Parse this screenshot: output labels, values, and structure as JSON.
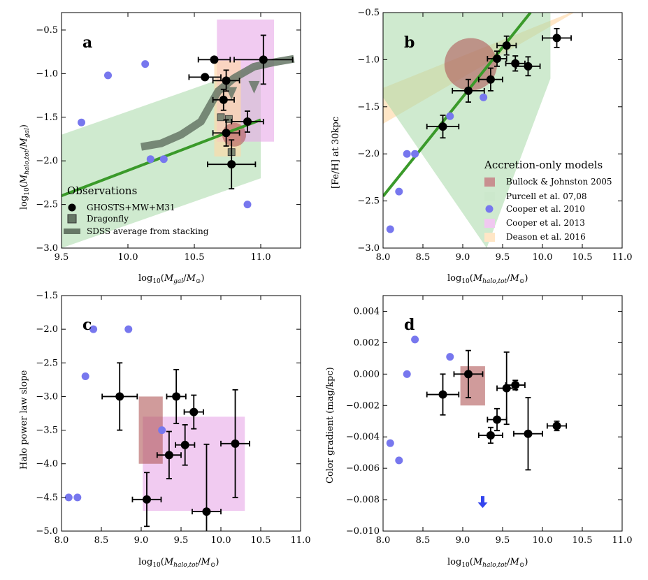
{
  "colors": {
    "blue": "#7777ee",
    "green_line": "#3a9a2a",
    "green_fill": "#a8d8a8",
    "pink": "#e8a8e8",
    "peach": "#ffd9a8",
    "brown": "#b05858",
    "sdss": "#667766",
    "black": "#000000"
  },
  "chart_data": [
    {
      "id": "a",
      "type": "scatter",
      "panel_label": "a",
      "xlabel": "log10(Mgal/M⊙)",
      "ylabel": "log10(Mhalo,tot/Mgal)",
      "xlim": [
        9.5,
        11.3
      ],
      "ylim": [
        -3.0,
        -0.3
      ],
      "xticks": [
        9.5,
        10.0,
        10.5,
        11.0
      ],
      "xtick_labels": [
        "9.5",
        "10.0",
        "10.5",
        "11.0"
      ],
      "yticks": [
        -3.0,
        -2.5,
        -2.0,
        -1.5,
        -1.0,
        -0.5
      ],
      "ytick_labels": [
        "−3.0",
        "−2.5",
        "−2.0",
        "−1.5",
        "−1.0",
        "−0.5"
      ],
      "ghosts": [
        {
          "x": 10.58,
          "y": -1.04,
          "xerr": 0.12,
          "yerr": 0.0
        },
        {
          "x": 10.65,
          "y": -0.84,
          "xerr": 0.12,
          "yerr": 0.0
        },
        {
          "x": 10.74,
          "y": -1.08,
          "xerr": 0.1,
          "yerr": 0.12
        },
        {
          "x": 10.72,
          "y": -1.3,
          "xerr": 0.08,
          "yerr": 0.12
        },
        {
          "x": 10.74,
          "y": -1.68,
          "xerr": 0.1,
          "yerr": 0.15
        },
        {
          "x": 10.78,
          "y": -2.04,
          "xerr": 0.18,
          "yerr": 0.28
        },
        {
          "x": 10.9,
          "y": -1.55,
          "xerr": 0.12,
          "yerr": 0.12
        },
        {
          "x": 11.02,
          "y": -0.84,
          "xerr": 0.22,
          "yerr": 0.28
        }
      ],
      "cooper2010": [
        {
          "x": 9.65,
          "y": -1.56
        },
        {
          "x": 9.85,
          "y": -1.02
        },
        {
          "x": 10.13,
          "y": -0.89
        },
        {
          "x": 10.17,
          "y": -1.98
        },
        {
          "x": 10.27,
          "y": -1.98
        },
        {
          "x": 10.9,
          "y": -2.5
        }
      ],
      "sdss_x": [
        10.1,
        10.25,
        10.4,
        10.55,
        10.68,
        10.8,
        10.95,
        11.1,
        11.25
      ],
      "sdss_y": [
        -1.84,
        -1.8,
        -1.7,
        -1.55,
        -1.2,
        -1.05,
        -0.92,
        -0.87,
        -0.83
      ],
      "purcell_line": {
        "x": [
          9.5,
          11.0
        ],
        "y": [
          -2.4,
          -1.53
        ]
      },
      "purcell_band": {
        "x": [
          9.5,
          11.0
        ],
        "y_low": [
          -3.0,
          -2.2
        ],
        "y_high": [
          -1.7,
          -0.9
        ]
      },
      "cooper2013_box": {
        "x": [
          10.67,
          11.1
        ],
        "y": [
          -1.78,
          -0.38
        ]
      },
      "deason_box": {
        "x": [
          10.65,
          10.85
        ],
        "y": [
          -1.95,
          -0.85
        ]
      },
      "bullock_circle": {
        "x": 10.8,
        "y": -1.7,
        "r_x": 0.09
      },
      "dragonfly": [
        {
          "x": 10.7,
          "y": -1.5
        },
        {
          "x": 10.76,
          "y": -1.52
        },
        {
          "x": 10.78,
          "y": -1.9
        }
      ],
      "dragonfly_upper_limits": [
        {
          "x": 10.78,
          "y": -1.25
        },
        {
          "x": 10.95,
          "y": -1.18
        }
      ],
      "legend": {
        "title": "Observations",
        "items": [
          "GHOSTS+MW+M31",
          "Dragonfly",
          "SDSS average from stacking"
        ]
      }
    },
    {
      "id": "b",
      "type": "scatter",
      "panel_label": "b",
      "xlabel": "log10(Mhalo,tot/M⊙)",
      "ylabel": "[Fe/H] at 30kpc",
      "xlim": [
        8.0,
        11.0
      ],
      "ylim": [
        -3.0,
        -0.5
      ],
      "xticks": [
        8.0,
        8.5,
        9.0,
        9.5,
        10.0,
        10.5,
        11.0
      ],
      "xtick_labels": [
        "8.0",
        "8.5",
        "9.0",
        "9.5",
        "10.0",
        "10.5",
        "11.0"
      ],
      "yticks": [
        -3.0,
        -2.5,
        -2.0,
        -1.5,
        -1.0,
        -0.5
      ],
      "ytick_labels": [
        "−3.0",
        "−2.5",
        "−2.0",
        "−1.5",
        "−1.0",
        "−0.5"
      ],
      "ghosts": [
        {
          "x": 8.75,
          "y": -1.71,
          "xerr": 0.2,
          "yerr": 0.12
        },
        {
          "x": 9.07,
          "y": -1.33,
          "xerr": 0.2,
          "yerr": 0.12
        },
        {
          "x": 9.35,
          "y": -1.21,
          "xerr": 0.15,
          "yerr": 0.12
        },
        {
          "x": 9.43,
          "y": -0.99,
          "xerr": 0.12,
          "yerr": 0.08
        },
        {
          "x": 9.55,
          "y": -0.85,
          "xerr": 0.12,
          "yerr": 0.1
        },
        {
          "x": 9.66,
          "y": -1.04,
          "xerr": 0.12,
          "yerr": 0.08
        },
        {
          "x": 9.82,
          "y": -1.07,
          "xerr": 0.15,
          "yerr": 0.1
        },
        {
          "x": 10.18,
          "y": -0.77,
          "xerr": 0.18,
          "yerr": 0.1
        }
      ],
      "cooper2010": [
        {
          "x": 8.09,
          "y": -2.8
        },
        {
          "x": 8.2,
          "y": -2.4
        },
        {
          "x": 8.3,
          "y": -2.0
        },
        {
          "x": 8.4,
          "y": -2.0
        },
        {
          "x": 8.84,
          "y": -1.6
        },
        {
          "x": 9.26,
          "y": -1.4
        }
      ],
      "purcell_line": {
        "x": [
          8.0,
          9.85
        ],
        "y": [
          -2.45,
          -0.5
        ]
      },
      "purcell_band": {
        "poly_x": [
          8.0,
          8.0,
          9.5,
          10.1,
          10.1,
          9.3
        ],
        "poly_y": [
          -1.4,
          -0.5,
          -0.5,
          -0.5,
          -1.2,
          -3.0
        ]
      },
      "deason_band": {
        "poly_x": [
          8.0,
          10.5,
          10.5,
          8.0
        ],
        "poly_y": [
          -1.68,
          -0.45,
          -0.45,
          -1.3
        ]
      },
      "bullock_circle": {
        "x": 9.1,
        "y": -1.05,
        "r_x": 0.33
      },
      "legend": {
        "title": "Accretion-only models",
        "items": [
          "Bullock & Johnston 2005",
          "Purcell et al. 07,08",
          "Cooper et al. 2010",
          "Cooper et al. 2013",
          "Deason et al. 2016"
        ]
      }
    },
    {
      "id": "c",
      "type": "scatter",
      "panel_label": "c",
      "xlabel": "log10(Mhalo,tot/M⊙)",
      "ylabel": "Halo power law slope",
      "xlim": [
        8.0,
        11.0
      ],
      "ylim": [
        -5.0,
        -1.5
      ],
      "xticks": [
        8.0,
        8.5,
        9.0,
        9.5,
        10.0,
        10.5,
        11.0
      ],
      "xtick_labels": [
        "8.0",
        "8.5",
        "9.0",
        "9.5",
        "10.0",
        "10.5",
        "11.0"
      ],
      "yticks": [
        -5.0,
        -4.5,
        -4.0,
        -3.5,
        -3.0,
        -2.5,
        -2.0,
        -1.5
      ],
      "ytick_labels": [
        "−5.0",
        "−4.5",
        "−4.0",
        "−3.5",
        "−3.0",
        "−2.5",
        "−2.0",
        "−1.5"
      ],
      "ghosts": [
        {
          "x": 8.73,
          "y": -3.0,
          "xerr": 0.22,
          "yerr": 0.5
        },
        {
          "x": 9.07,
          "y": -4.53,
          "xerr": 0.18,
          "yerr": 0.4
        },
        {
          "x": 9.35,
          "y": -3.87,
          "xerr": 0.15,
          "yerr": 0.35
        },
        {
          "x": 9.44,
          "y": -3.0,
          "xerr": 0.12,
          "yerr": 0.4
        },
        {
          "x": 9.55,
          "y": -3.72,
          "xerr": 0.12,
          "yerr": 0.3
        },
        {
          "x": 9.66,
          "y": -3.23,
          "xerr": 0.12,
          "yerr": 0.25
        },
        {
          "x": 9.82,
          "y": -4.71,
          "xerr": 0.18,
          "yerr": 1.0
        },
        {
          "x": 10.18,
          "y": -3.7,
          "xerr": 0.18,
          "yerr": 0.8
        }
      ],
      "cooper2010": [
        {
          "x": 8.09,
          "y": -4.5
        },
        {
          "x": 8.2,
          "y": -4.5
        },
        {
          "x": 8.3,
          "y": -2.7
        },
        {
          "x": 8.4,
          "y": -2.0
        },
        {
          "x": 8.84,
          "y": -2.0
        },
        {
          "x": 9.26,
          "y": -3.5
        }
      ],
      "cooper2013_box": {
        "x": [
          9.02,
          10.3
        ],
        "y": [
          -4.7,
          -3.3
        ]
      },
      "bullock_box": {
        "x": [
          8.97,
          9.27
        ],
        "y": [
          -4.0,
          -3.0
        ]
      }
    },
    {
      "id": "d",
      "type": "scatter",
      "panel_label": "d",
      "xlabel": "log10(Mhalo,tot/M⊙)",
      "ylabel": "Color gradient (mag/kpc)",
      "xlim": [
        8.0,
        11.0
      ],
      "ylim": [
        -0.01,
        0.005
      ],
      "xticks": [
        8.0,
        8.5,
        9.0,
        9.5,
        10.0,
        10.5,
        11.0
      ],
      "xtick_labels": [
        "8.0",
        "8.5",
        "9.0",
        "9.5",
        "10.0",
        "10.5",
        "11.0"
      ],
      "yticks": [
        -0.01,
        -0.008,
        -0.006,
        -0.004,
        -0.002,
        0.0,
        0.002,
        0.004
      ],
      "ytick_labels": [
        "−0.010",
        "−0.008",
        "−0.006",
        "−0.004",
        "−0.002",
        "0.000",
        "0.002",
        "0.004"
      ],
      "ghosts": [
        {
          "x": 8.75,
          "y": -0.0013,
          "xerr": 0.2,
          "yerr": 0.0013
        },
        {
          "x": 9.07,
          "y": 0.0,
          "xerr": 0.18,
          "yerr": 0.0015
        },
        {
          "x": 9.35,
          "y": -0.0039,
          "xerr": 0.15,
          "yerr": 0.0005
        },
        {
          "x": 9.43,
          "y": -0.0029,
          "xerr": 0.12,
          "yerr": 0.0007
        },
        {
          "x": 9.55,
          "y": -0.0009,
          "xerr": 0.12,
          "yerr": 0.0023
        },
        {
          "x": 9.66,
          "y": -0.0007,
          "xerr": 0.12,
          "yerr": 0.0003
        },
        {
          "x": 9.82,
          "y": -0.0038,
          "xerr": 0.18,
          "yerr": 0.0023
        },
        {
          "x": 10.18,
          "y": -0.0033,
          "xerr": 0.12,
          "yerr": 0.0003
        }
      ],
      "cooper2010": [
        {
          "x": 8.09,
          "y": -0.0044
        },
        {
          "x": 8.2,
          "y": -0.0055
        },
        {
          "x": 8.3,
          "y": 0.0
        },
        {
          "x": 8.4,
          "y": 0.0022
        },
        {
          "x": 8.84,
          "y": 0.0011
        }
      ],
      "bullock_box": {
        "x": [
          8.97,
          9.28
        ],
        "y": [
          -0.002,
          0.0005
        ]
      },
      "upper_limit_arrow": {
        "x": 9.25,
        "y": -0.0084
      }
    }
  ]
}
